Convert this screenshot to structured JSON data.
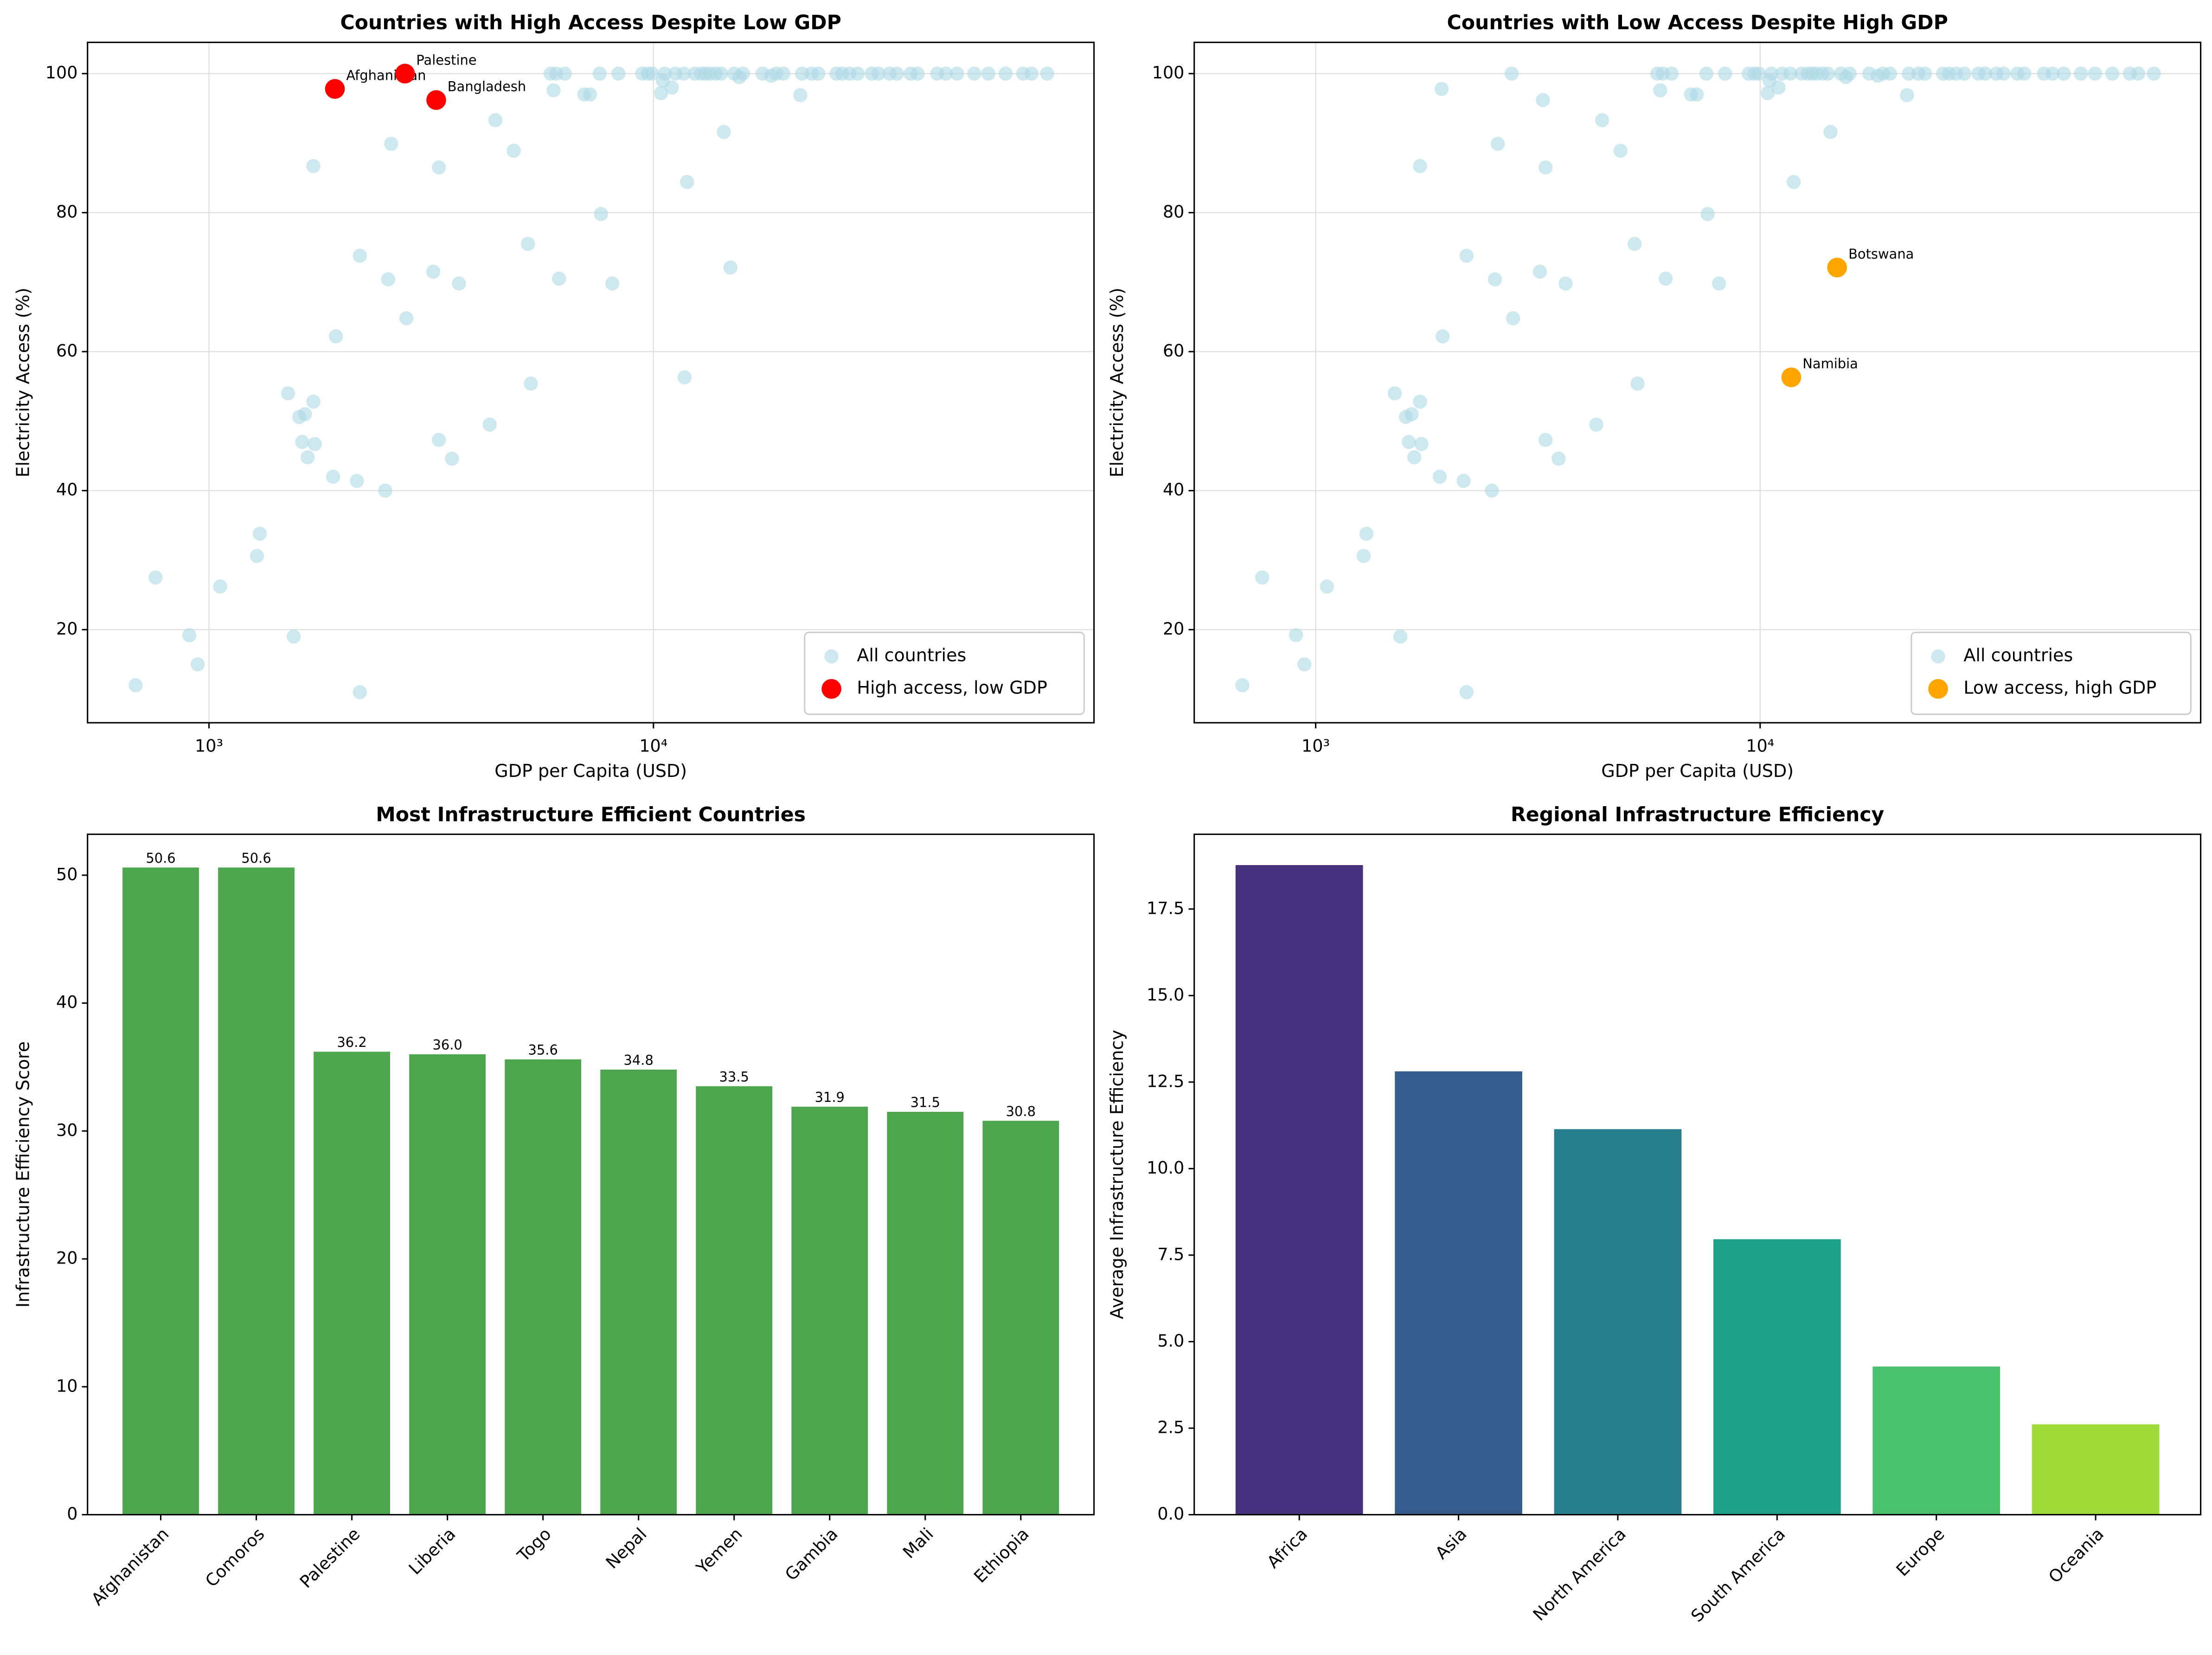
{
  "chart_data": [
    {
      "type": "scatter",
      "title": "Countries with High Access Despite Low GDP",
      "xlabel": "GDP per Capita (USD)",
      "ylabel": "Electricity Access (%)",
      "xscale": "log",
      "xlim": [
        533,
        98000
      ],
      "ylim": [
        6.6,
        104.5
      ],
      "xticks": [
        {
          "value": 1000,
          "label": "10³"
        },
        {
          "value": 10000,
          "label": "10⁴"
        }
      ],
      "yticks": [
        20,
        40,
        60,
        80,
        100
      ],
      "grid": true,
      "legend": "lower right",
      "series": [
        {
          "name": "All countries",
          "color": "#add8e6",
          "x": [
            684,
            758,
            903,
            943,
            1060,
            1282,
            1301,
            1506,
            1551,
            1596,
            1644,
            1620,
            1667,
            1717,
            1717,
            1730,
            1902,
            1920,
            1930,
            2152,
            2185,
            2185,
            2492,
            2530,
            2569,
            2760,
            2780,
            3195,
            3245,
            3290,
            3290,
            3520,
            3650,
            4280,
            4410,
            4850,
            5220,
            5300,
            5870,
            5960,
            6040,
            6130,
            6320,
            6990,
            7200,
            7570,
            7620,
            8080,
            8340,
            9430,
            9710,
            9930,
            10400,
            10500,
            10600,
            11000,
            11200,
            11700,
            11750,
            11900,
            12400,
            12800,
            13100,
            13400,
            13800,
            14200,
            14400,
            14900,
            15200,
            15600,
            15900,
            17600,
            18400,
            18900,
            19600,
            21400,
            21600,
            22700,
            23500,
            25800,
            26600,
            27600,
            28800,
            31000,
            32100,
            34000,
            35300,
            37900,
            39300,
            43500,
            45500,
            48200,
            52700,
            56700,
            62000,
            67900,
            70900,
            76900
          ],
          "values": [
            12,
            27.5,
            19.2,
            15,
            26.2,
            30.6,
            33.8,
            54,
            19,
            50.6,
            51,
            47,
            44.8,
            52.8,
            86.7,
            46.7,
            42,
            97.8,
            62.2,
            41.4,
            73.8,
            11,
            40,
            70.4,
            89.9,
            100,
            64.8,
            71.5,
            96.2,
            47.3,
            86.5,
            44.6,
            69.8,
            49.5,
            93.3,
            88.9,
            75.5,
            55.4,
            100,
            97.6,
            100,
            70.5,
            100,
            97,
            97,
            100,
            79.8,
            69.8,
            100,
            100,
            100,
            100,
            97.2,
            99,
            100,
            98,
            100,
            100,
            56.3,
            84.4,
            100,
            100,
            100,
            100,
            100,
            100,
            91.6,
            72.1,
            100,
            99.5,
            100,
            100,
            99.7,
            100,
            100,
            96.9,
            100,
            100,
            100,
            100,
            100,
            100,
            100,
            100,
            100,
            100,
            100,
            100,
            100,
            100,
            100,
            100,
            100,
            100,
            100,
            100,
            100,
            100
          ]
        },
        {
          "name": "High access, low GDP",
          "color": "#ff0000",
          "x": [
            1920,
            2760,
            3245
          ],
          "values": [
            97.8,
            100,
            96.2
          ],
          "labels": [
            "Afghanistan",
            "Palestine",
            "Bangladesh"
          ]
        }
      ]
    },
    {
      "type": "scatter",
      "title": "Countries with Low Access Despite High GDP",
      "xlabel": "GDP per Capita (USD)",
      "ylabel": "Electricity Access (%)",
      "xscale": "log",
      "xlim": [
        533,
        98000
      ],
      "ylim": [
        6.6,
        104.5
      ],
      "xticks": [
        {
          "value": 1000,
          "label": "10³"
        },
        {
          "value": 10000,
          "label": "10⁴"
        }
      ],
      "yticks": [
        20,
        40,
        60,
        80,
        100
      ],
      "grid": true,
      "legend": "lower right",
      "series": [
        {
          "name": "All countries",
          "color": "#add8e6",
          "x": [
            684,
            758,
            903,
            943,
            1060,
            1282,
            1301,
            1506,
            1551,
            1596,
            1644,
            1620,
            1667,
            1717,
            1717,
            1730,
            1902,
            1920,
            1930,
            2152,
            2185,
            2185,
            2492,
            2530,
            2569,
            2760,
            2780,
            3195,
            3245,
            3290,
            3290,
            3520,
            3650,
            4280,
            4410,
            4850,
            5220,
            5300,
            5870,
            5960,
            6040,
            6130,
            6320,
            6990,
            7200,
            7570,
            7620,
            8080,
            8340,
            9430,
            9710,
            9930,
            10400,
            10500,
            10600,
            11000,
            11200,
            11700,
            11750,
            11900,
            12400,
            12800,
            13100,
            13400,
            13800,
            14200,
            14400,
            14900,
            15200,
            15600,
            15900,
            17600,
            18400,
            18900,
            19600,
            21400,
            21600,
            22700,
            23500,
            25800,
            26600,
            27600,
            28800,
            31000,
            32100,
            34000,
            35300,
            37900,
            39300,
            43500,
            45500,
            48200,
            52700,
            56700,
            62000,
            67900,
            70900,
            76900
          ],
          "values": [
            12,
            27.5,
            19.2,
            15,
            26.2,
            30.6,
            33.8,
            54,
            19,
            50.6,
            51,
            47,
            44.8,
            52.8,
            86.7,
            46.7,
            42,
            97.8,
            62.2,
            41.4,
            73.8,
            11,
            40,
            70.4,
            89.9,
            100,
            64.8,
            71.5,
            96.2,
            47.3,
            86.5,
            44.6,
            69.8,
            49.5,
            93.3,
            88.9,
            75.5,
            55.4,
            100,
            97.6,
            100,
            70.5,
            100,
            97,
            97,
            100,
            79.8,
            69.8,
            100,
            100,
            100,
            100,
            97.2,
            99,
            100,
            98,
            100,
            100,
            56.3,
            84.4,
            100,
            100,
            100,
            100,
            100,
            100,
            91.6,
            72.1,
            100,
            99.5,
            100,
            100,
            99.7,
            100,
            100,
            96.9,
            100,
            100,
            100,
            100,
            100,
            100,
            100,
            100,
            100,
            100,
            100,
            100,
            100,
            100,
            100,
            100,
            100,
            100,
            100,
            100,
            100,
            100
          ]
        },
        {
          "name": "Low access, high GDP",
          "color": "#ffa500",
          "x": [
            14900,
            11750
          ],
          "values": [
            72.1,
            56.3
          ],
          "labels": [
            "Botswana",
            "Namibia"
          ]
        }
      ]
    },
    {
      "type": "bar",
      "title": "Most Infrastructure Efficient Countries",
      "ylabel": "Infrastructure Efficiency Score",
      "categories": [
        "Afghanistan",
        "Comoros",
        "Palestine",
        "Liberia",
        "Togo",
        "Nepal",
        "Yemen",
        "Gambia",
        "Mali",
        "Ethiopia"
      ],
      "values": [
        50.6,
        50.6,
        36.2,
        36.0,
        35.6,
        34.8,
        33.5,
        31.9,
        31.5,
        30.8
      ],
      "value_labels": [
        "50.6",
        "50.6",
        "36.2",
        "36.0",
        "35.6",
        "34.8",
        "33.5",
        "31.9",
        "31.5",
        "30.8"
      ],
      "color": "#4da64d",
      "ylim": [
        0,
        53.2
      ],
      "yticks": [
        0,
        10,
        20,
        30,
        40,
        50
      ]
    },
    {
      "type": "bar",
      "title": "Regional Infrastructure Efficiency",
      "ylabel": "Average Infrastructure Efficiency",
      "categories": [
        "Africa",
        "Asia",
        "North America",
        "South America",
        "Europe",
        "Oceania"
      ],
      "values": [
        18.77,
        12.81,
        11.14,
        7.96,
        4.28,
        2.61
      ],
      "colors": [
        "#46327e",
        "#365c8d",
        "#277f8e",
        "#1fa187",
        "#4ac16d",
        "#a0da39"
      ],
      "ylim": [
        0,
        19.66
      ],
      "yticks": [
        {
          "value": 0,
          "label": "0.0"
        },
        {
          "value": 2.5,
          "label": "2.5"
        },
        {
          "value": 5,
          "label": "5.0"
        },
        {
          "value": 7.5,
          "label": "7.5"
        },
        {
          "value": 10,
          "label": "10.0"
        },
        {
          "value": 12.5,
          "label": "12.5"
        },
        {
          "value": 15,
          "label": "15.0"
        },
        {
          "value": 17.5,
          "label": "17.5"
        }
      ]
    }
  ]
}
